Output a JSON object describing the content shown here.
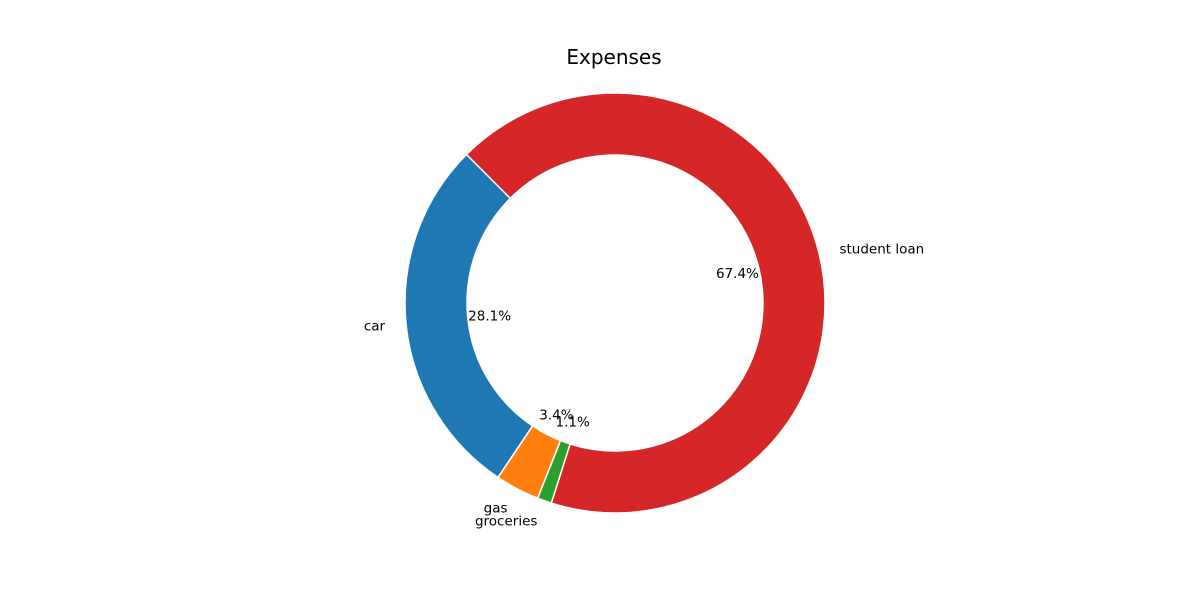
{
  "chart_data": {
    "type": "pie",
    "variant": "donut",
    "title": "Expenses",
    "slices": [
      {
        "label": "car",
        "value": 28.1,
        "pct_text": "28.1%",
        "color": "#1f77b4"
      },
      {
        "label": "gas",
        "value": 3.4,
        "pct_text": "3.4%",
        "color": "#ff7f0e"
      },
      {
        "label": "groceries",
        "value": 1.1,
        "pct_text": "1.1%",
        "color": "#2ca02c"
      },
      {
        "label": "student loan",
        "value": 67.4,
        "pct_text": "67.4%",
        "color": "#d62728"
      }
    ],
    "legend": "none"
  }
}
